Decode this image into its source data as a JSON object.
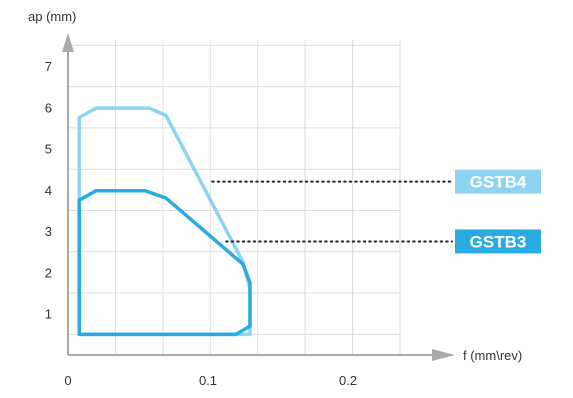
{
  "chart_data": {
    "type": "area",
    "xlabel": "f (mm\\rev)",
    "ylabel": "ap (mm)",
    "x_ticks": [
      "0",
      "0.1",
      "0.2"
    ],
    "y_ticks": [
      "1",
      "2",
      "3",
      "4",
      "5",
      "6",
      "7"
    ],
    "xlim": [
      0,
      0.2
    ],
    "ylim": [
      0,
      7
    ],
    "grid": true,
    "series": [
      {
        "name": "GSTB4",
        "color": "#8fd3f2",
        "boundary": [
          [
            0.008,
            0.5
          ],
          [
            0.008,
            5.75
          ],
          [
            0.02,
            5.98
          ],
          [
            0.058,
            5.98
          ],
          [
            0.07,
            5.8
          ],
          [
            0.125,
            2.25
          ],
          [
            0.13,
            1.6
          ],
          [
            0.13,
            0.5
          ]
        ],
        "label_at": [
          0.103,
          4.2
        ]
      },
      {
        "name": "GSTB3",
        "color": "#29abe2",
        "boundary": [
          [
            0.008,
            0.5
          ],
          [
            0.008,
            3.75
          ],
          [
            0.02,
            3.98
          ],
          [
            0.055,
            3.98
          ],
          [
            0.07,
            3.8
          ],
          [
            0.125,
            2.2
          ],
          [
            0.13,
            1.75
          ],
          [
            0.13,
            0.7
          ],
          [
            0.12,
            0.5
          ]
        ],
        "label_at": [
          0.113,
          2.75
        ]
      }
    ]
  }
}
